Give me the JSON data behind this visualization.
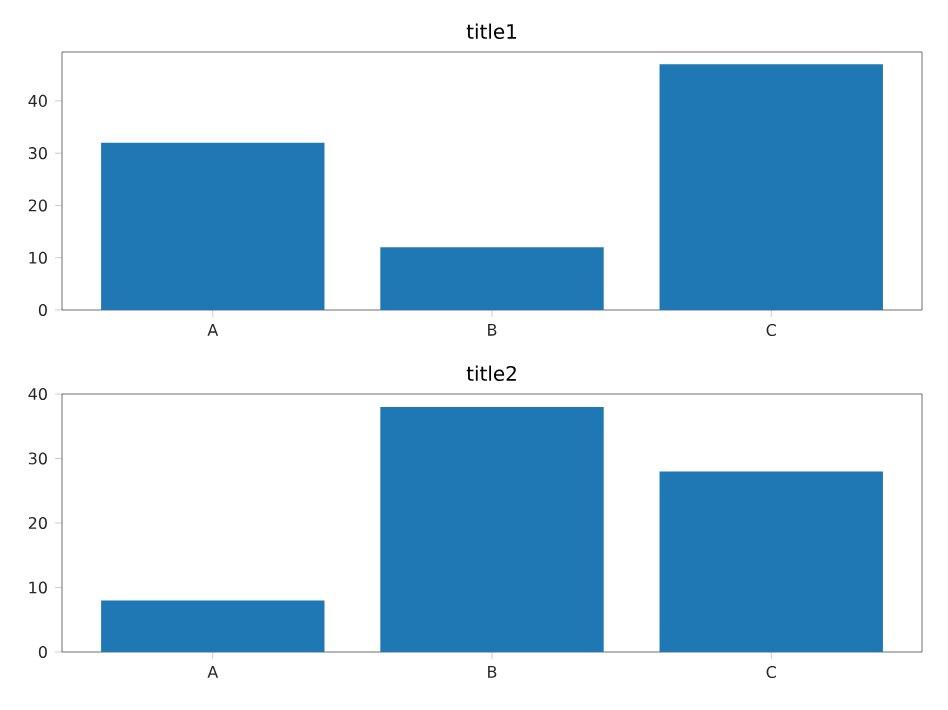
{
  "chart_data": [
    {
      "type": "bar",
      "title": "title1",
      "categories": [
        "A",
        "B",
        "C"
      ],
      "values": [
        32,
        12,
        47
      ],
      "color": "#1f77b4",
      "ylim": [
        0,
        49.35
      ],
      "yticks": [
        0,
        10,
        20,
        30,
        40
      ]
    },
    {
      "type": "bar",
      "title": "title2",
      "categories": [
        "A",
        "B",
        "C"
      ],
      "values": [
        8,
        38,
        28
      ],
      "color": "#1f77b4",
      "ylim": [
        0,
        40
      ],
      "yticks": [
        0,
        10,
        20,
        30,
        40
      ]
    }
  ]
}
